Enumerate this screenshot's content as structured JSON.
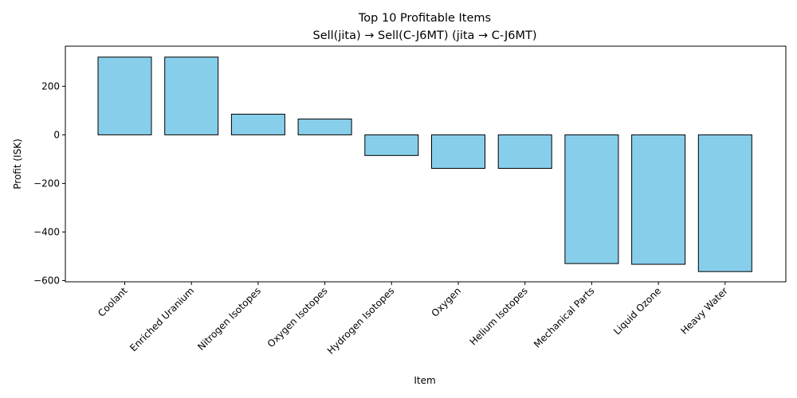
{
  "chart_data": {
    "type": "bar",
    "title": "Top 10 Profitable Items",
    "subtitle": "Sell(jita) → Sell(C-J6MT) (jita → C-J6MT)",
    "xlabel": "Item",
    "ylabel": "Profit (ISK)",
    "categories": [
      "Coolant",
      "Enriched Uranium",
      "Nitrogen Isotopes",
      "Oxygen Isotopes",
      "Hydrogen Isotopes",
      "Oxygen",
      "Helium Isotopes",
      "Mechanical Parts",
      "Liquid Ozone",
      "Heavy Water"
    ],
    "values": [
      320,
      320,
      85,
      65,
      -85,
      -138,
      -138,
      -530,
      -533,
      -563
    ],
    "yticks": [
      -600,
      -400,
      -200,
      0,
      200
    ],
    "ylim": [
      -605,
      365
    ],
    "grid": false,
    "legend": "none",
    "colors": {
      "bar_fill": "#87ceeb",
      "bar_edge": "#000000"
    }
  }
}
